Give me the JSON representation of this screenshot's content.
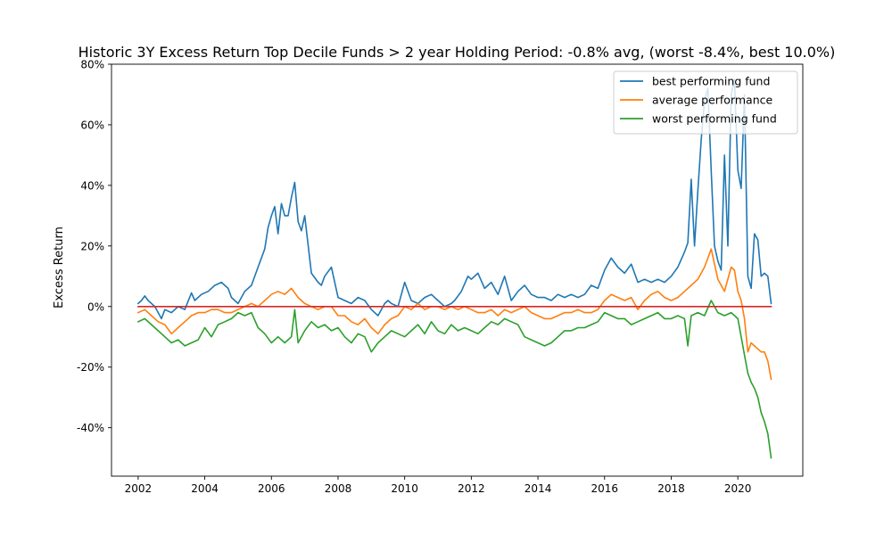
{
  "chart_data": {
    "type": "line",
    "title": "Historic 3Y Excess Return Top Decile Funds > 2 year Holding Period: -0.8% avg, (worst -8.4%, best 10.0%)",
    "xlabel": "",
    "ylabel": "Excess Return",
    "xlim": [
      2001.2,
      2021.95
    ],
    "ylim": [
      -0.56,
      0.8
    ],
    "x_ticks": [
      2002,
      2004,
      2006,
      2008,
      2010,
      2012,
      2014,
      2016,
      2018,
      2020
    ],
    "x_tick_labels": [
      "2002",
      "2004",
      "2006",
      "2008",
      "2010",
      "2012",
      "2014",
      "2016",
      "2018",
      "2020"
    ],
    "y_ticks": [
      -0.4,
      -0.2,
      0.0,
      0.2,
      0.4,
      0.6,
      0.8
    ],
    "y_tick_labels": [
      "-40%",
      "-20%",
      "0%",
      "20%",
      "40%",
      "60%",
      "80%"
    ],
    "grid": false,
    "legend_position": "upper right",
    "series": [
      {
        "name": "best performing fund",
        "color": "#1f77b4",
        "x": [
          2002.0,
          2002.1,
          2002.2,
          2002.3,
          2002.5,
          2002.7,
          2002.8,
          2003.0,
          2003.2,
          2003.4,
          2003.6,
          2003.7,
          2003.9,
          2004.1,
          2004.3,
          2004.5,
          2004.7,
          2004.8,
          2005.0,
          2005.2,
          2005.4,
          2005.6,
          2005.8,
          2005.9,
          2006.0,
          2006.1,
          2006.2,
          2006.3,
          2006.4,
          2006.5,
          2006.6,
          2006.7,
          2006.8,
          2006.9,
          2007.0,
          2007.2,
          2007.4,
          2007.5,
          2007.6,
          2007.8,
          2008.0,
          2008.2,
          2008.4,
          2008.6,
          2008.8,
          2009.0,
          2009.2,
          2009.4,
          2009.5,
          2009.6,
          2009.8,
          2010.0,
          2010.2,
          2010.4,
          2010.6,
          2010.8,
          2011.0,
          2011.2,
          2011.4,
          2011.5,
          2011.7,
          2011.9,
          2012.0,
          2012.2,
          2012.4,
          2012.6,
          2012.8,
          2013.0,
          2013.2,
          2013.4,
          2013.6,
          2013.8,
          2014.0,
          2014.2,
          2014.4,
          2014.6,
          2014.8,
          2015.0,
          2015.2,
          2015.4,
          2015.6,
          2015.8,
          2016.0,
          2016.2,
          2016.4,
          2016.6,
          2016.8,
          2017.0,
          2017.2,
          2017.4,
          2017.6,
          2017.8,
          2018.0,
          2018.2,
          2018.4,
          2018.5,
          2018.6,
          2018.7,
          2018.8,
          2018.9,
          2019.0,
          2019.1,
          2019.2,
          2019.3,
          2019.4,
          2019.5,
          2019.6,
          2019.7,
          2019.8,
          2019.9,
          2020.0,
          2020.1,
          2020.2,
          2020.3,
          2020.4,
          2020.5,
          2020.6,
          2020.7,
          2020.8,
          2020.9,
          2021.0
        ],
        "y": [
          0.01,
          0.02,
          0.035,
          0.02,
          0.0,
          -0.04,
          -0.01,
          -0.02,
          0.0,
          -0.01,
          0.045,
          0.02,
          0.04,
          0.05,
          0.07,
          0.08,
          0.06,
          0.03,
          0.01,
          0.05,
          0.07,
          0.13,
          0.19,
          0.26,
          0.3,
          0.33,
          0.24,
          0.34,
          0.3,
          0.3,
          0.36,
          0.41,
          0.28,
          0.25,
          0.3,
          0.11,
          0.08,
          0.07,
          0.1,
          0.13,
          0.03,
          0.02,
          0.01,
          0.03,
          0.02,
          -0.01,
          -0.03,
          0.01,
          0.02,
          0.01,
          0.0,
          0.08,
          0.02,
          0.01,
          0.03,
          0.04,
          0.02,
          0.0,
          0.01,
          0.02,
          0.05,
          0.1,
          0.09,
          0.11,
          0.06,
          0.08,
          0.04,
          0.1,
          0.02,
          0.05,
          0.07,
          0.04,
          0.03,
          0.03,
          0.02,
          0.04,
          0.03,
          0.04,
          0.03,
          0.04,
          0.07,
          0.06,
          0.12,
          0.16,
          0.13,
          0.11,
          0.14,
          0.08,
          0.09,
          0.08,
          0.09,
          0.08,
          0.1,
          0.13,
          0.18,
          0.21,
          0.42,
          0.2,
          0.38,
          0.55,
          0.68,
          0.72,
          0.45,
          0.2,
          0.15,
          0.12,
          0.5,
          0.2,
          0.7,
          0.75,
          0.45,
          0.39,
          0.7,
          0.1,
          0.06,
          0.24,
          0.22,
          0.1,
          0.11,
          0.1,
          0.01
        ]
      },
      {
        "name": "average performance",
        "color": "#ff7f0e",
        "x": [
          2002.0,
          2002.2,
          2002.4,
          2002.6,
          2002.8,
          2003.0,
          2003.2,
          2003.4,
          2003.6,
          2003.8,
          2004.0,
          2004.2,
          2004.4,
          2004.6,
          2004.8,
          2005.0,
          2005.2,
          2005.4,
          2005.6,
          2005.8,
          2006.0,
          2006.2,
          2006.4,
          2006.6,
          2006.8,
          2007.0,
          2007.2,
          2007.4,
          2007.6,
          2007.8,
          2008.0,
          2008.2,
          2008.4,
          2008.6,
          2008.8,
          2009.0,
          2009.2,
          2009.4,
          2009.6,
          2009.8,
          2010.0,
          2010.2,
          2010.4,
          2010.6,
          2010.8,
          2011.0,
          2011.2,
          2011.4,
          2011.6,
          2011.8,
          2012.0,
          2012.2,
          2012.4,
          2012.6,
          2012.8,
          2013.0,
          2013.2,
          2013.4,
          2013.6,
          2013.8,
          2014.0,
          2014.2,
          2014.4,
          2014.6,
          2014.8,
          2015.0,
          2015.2,
          2015.4,
          2015.6,
          2015.8,
          2016.0,
          2016.2,
          2016.4,
          2016.6,
          2016.8,
          2017.0,
          2017.2,
          2017.4,
          2017.6,
          2017.8,
          2018.0,
          2018.2,
          2018.4,
          2018.6,
          2018.8,
          2019.0,
          2019.1,
          2019.2,
          2019.4,
          2019.6,
          2019.8,
          2019.9,
          2020.0,
          2020.1,
          2020.2,
          2020.3,
          2020.4,
          2020.5,
          2020.6,
          2020.7,
          2020.8,
          2020.9,
          2021.0
        ],
        "y": [
          -0.02,
          -0.01,
          -0.03,
          -0.05,
          -0.06,
          -0.09,
          -0.07,
          -0.05,
          -0.03,
          -0.02,
          -0.02,
          -0.01,
          -0.01,
          -0.02,
          -0.02,
          -0.01,
          0.0,
          0.01,
          0.0,
          0.02,
          0.04,
          0.05,
          0.04,
          0.06,
          0.03,
          0.01,
          0.0,
          -0.01,
          0.0,
          0.0,
          -0.03,
          -0.03,
          -0.05,
          -0.06,
          -0.04,
          -0.07,
          -0.09,
          -0.06,
          -0.04,
          -0.03,
          0.0,
          -0.01,
          0.01,
          -0.01,
          0.0,
          0.0,
          -0.01,
          0.0,
          -0.01,
          0.0,
          -0.01,
          -0.02,
          -0.02,
          -0.01,
          -0.03,
          -0.01,
          -0.02,
          -0.01,
          0.0,
          -0.02,
          -0.03,
          -0.04,
          -0.04,
          -0.03,
          -0.02,
          -0.02,
          -0.01,
          -0.02,
          -0.02,
          -0.01,
          0.02,
          0.04,
          0.03,
          0.02,
          0.03,
          -0.01,
          0.02,
          0.04,
          0.05,
          0.03,
          0.02,
          0.03,
          0.05,
          0.07,
          0.09,
          0.13,
          0.16,
          0.19,
          0.09,
          0.05,
          0.13,
          0.12,
          0.05,
          0.02,
          -0.04,
          -0.15,
          -0.12,
          -0.13,
          -0.14,
          -0.15,
          -0.15,
          -0.18,
          -0.24
        ]
      },
      {
        "name": "worst performing fund",
        "color": "#2ca02c",
        "x": [
          2002.0,
          2002.2,
          2002.4,
          2002.6,
          2002.8,
          2003.0,
          2003.2,
          2003.4,
          2003.6,
          2003.8,
          2004.0,
          2004.2,
          2004.4,
          2004.6,
          2004.8,
          2005.0,
          2005.2,
          2005.4,
          2005.6,
          2005.8,
          2006.0,
          2006.2,
          2006.4,
          2006.6,
          2006.7,
          2006.8,
          2007.0,
          2007.2,
          2007.4,
          2007.6,
          2007.8,
          2008.0,
          2008.2,
          2008.4,
          2008.6,
          2008.8,
          2009.0,
          2009.2,
          2009.4,
          2009.6,
          2009.8,
          2010.0,
          2010.2,
          2010.4,
          2010.6,
          2010.8,
          2011.0,
          2011.2,
          2011.4,
          2011.6,
          2011.8,
          2012.0,
          2012.2,
          2012.4,
          2012.6,
          2012.8,
          2013.0,
          2013.2,
          2013.4,
          2013.6,
          2013.8,
          2014.0,
          2014.2,
          2014.4,
          2014.6,
          2014.8,
          2015.0,
          2015.2,
          2015.4,
          2015.6,
          2015.8,
          2016.0,
          2016.2,
          2016.4,
          2016.6,
          2016.8,
          2017.0,
          2017.2,
          2017.4,
          2017.6,
          2017.8,
          2018.0,
          2018.2,
          2018.4,
          2018.5,
          2018.6,
          2018.8,
          2019.0,
          2019.2,
          2019.4,
          2019.6,
          2019.8,
          2020.0,
          2020.1,
          2020.2,
          2020.3,
          2020.4,
          2020.5,
          2020.6,
          2020.7,
          2020.8,
          2020.9,
          2021.0
        ],
        "y": [
          -0.05,
          -0.04,
          -0.06,
          -0.08,
          -0.1,
          -0.12,
          -0.11,
          -0.13,
          -0.12,
          -0.11,
          -0.07,
          -0.1,
          -0.06,
          -0.05,
          -0.04,
          -0.02,
          -0.03,
          -0.02,
          -0.07,
          -0.09,
          -0.12,
          -0.1,
          -0.12,
          -0.1,
          -0.01,
          -0.12,
          -0.08,
          -0.05,
          -0.07,
          -0.06,
          -0.08,
          -0.07,
          -0.1,
          -0.12,
          -0.09,
          -0.1,
          -0.15,
          -0.12,
          -0.1,
          -0.08,
          -0.09,
          -0.1,
          -0.08,
          -0.06,
          -0.09,
          -0.05,
          -0.08,
          -0.09,
          -0.06,
          -0.08,
          -0.07,
          -0.08,
          -0.09,
          -0.07,
          -0.05,
          -0.06,
          -0.04,
          -0.05,
          -0.06,
          -0.1,
          -0.11,
          -0.12,
          -0.13,
          -0.12,
          -0.1,
          -0.08,
          -0.08,
          -0.07,
          -0.07,
          -0.06,
          -0.05,
          -0.02,
          -0.03,
          -0.04,
          -0.04,
          -0.06,
          -0.05,
          -0.04,
          -0.03,
          -0.02,
          -0.04,
          -0.04,
          -0.03,
          -0.04,
          -0.13,
          -0.03,
          -0.02,
          -0.03,
          0.02,
          -0.02,
          -0.03,
          -0.02,
          -0.04,
          -0.1,
          -0.16,
          -0.22,
          -0.25,
          -0.27,
          -0.3,
          -0.35,
          -0.38,
          -0.42,
          -0.5
        ]
      },
      {
        "name": "",
        "color": "#d62728",
        "legend": false,
        "x": [
          2002.0,
          2021.0
        ],
        "y": [
          0.0,
          0.0
        ]
      }
    ]
  }
}
